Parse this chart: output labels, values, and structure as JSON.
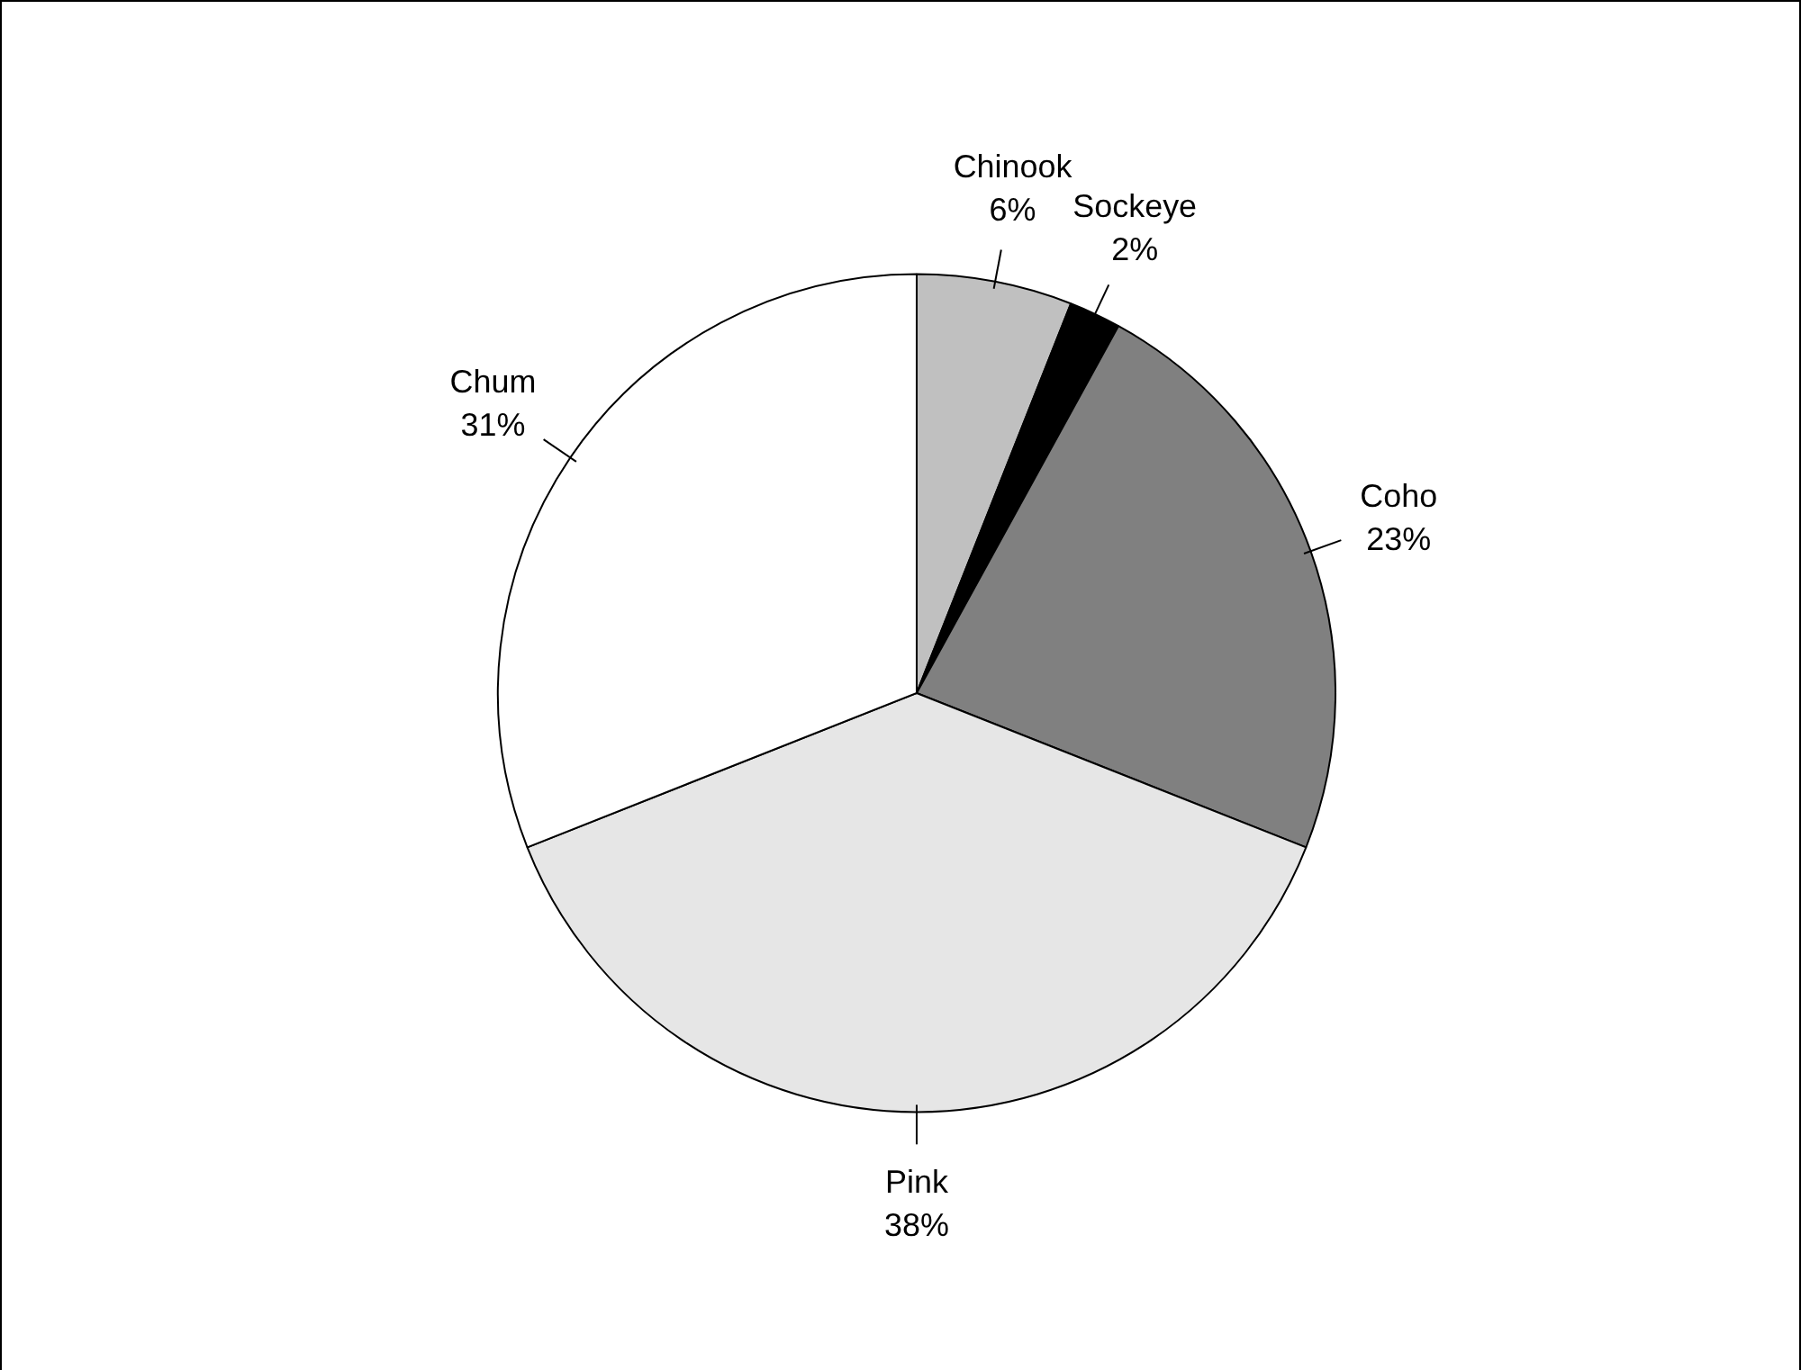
{
  "chart_data": {
    "type": "pie",
    "categories": [
      "Chinook",
      "Sockeye",
      "Coho",
      "Pink",
      "Chum"
    ],
    "values": [
      6,
      2,
      23,
      38,
      31
    ],
    "value_labels": [
      "6%",
      "2%",
      "23%",
      "38%",
      "31%"
    ],
    "colors": [
      "#c0c0c0",
      "#000000",
      "#808080",
      "#e6e6e6",
      "#ffffff"
    ],
    "legend": false
  }
}
